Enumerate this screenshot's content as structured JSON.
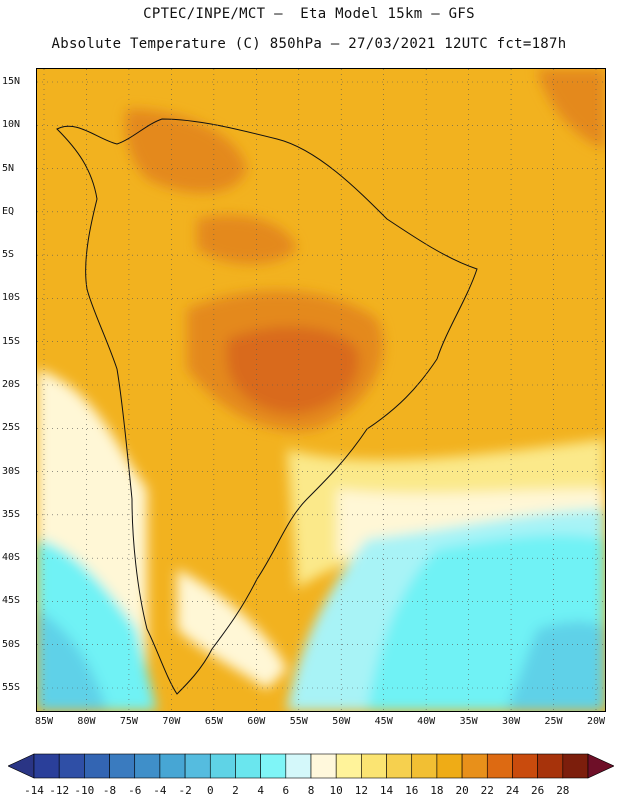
{
  "title_line1": "CPTEC/INPE/MCT –  Eta Model 15km – GFS",
  "title_line2": "Absolute Temperature (C) 850hPa – 27/03/2021 12UTC fct=187h",
  "lat_labels": [
    "15N",
    "10N",
    "5N",
    "EQ",
    "5S",
    "10S",
    "15S",
    "20S",
    "25S",
    "30S",
    "35S",
    "40S",
    "45S",
    "50S",
    "55S"
  ],
  "lon_labels": [
    "85W",
    "80W",
    "75W",
    "70W",
    "65W",
    "60W",
    "55W",
    "50W",
    "45W",
    "40W",
    "35W",
    "30W",
    "25W",
    "20W"
  ],
  "colorbar": {
    "labels": [
      "-14",
      "-12",
      "-10",
      "-8",
      "-6",
      "-4",
      "-2",
      "0",
      "2",
      "4",
      "6",
      "8",
      "10",
      "12",
      "14",
      "16",
      "18",
      "20",
      "22",
      "24",
      "26",
      "28"
    ],
    "colors": [
      "#2a3f9a",
      "#2f4fa6",
      "#3365b3",
      "#3a7bbf",
      "#3f8fc9",
      "#47a6d4",
      "#55bcdf",
      "#5fd3e6",
      "#6ae6ee",
      "#7ff5f7",
      "#d4f8fa",
      "#fff8dc",
      "#fff39a",
      "#fbe472",
      "#f6d04e",
      "#f2bf33",
      "#efac16",
      "#e8901a",
      "#dd6a12",
      "#c94b0d",
      "#a7330b",
      "#7c1e0c"
    ],
    "under_color": "#2a3585",
    "over_color": "#6e0f28"
  },
  "colors": {
    "ocean_warm": "#f2b21f",
    "land_warm": "#f0b832",
    "hot_core": "#d96a1c",
    "hot_mid": "#e4891f",
    "cool_pale": "#fff7d6",
    "cool_yellow": "#fbe98a",
    "cyan": "#6ff2f5",
    "cyan_light": "#a8f3f6",
    "blue_light": "#5fd1e8"
  }
}
